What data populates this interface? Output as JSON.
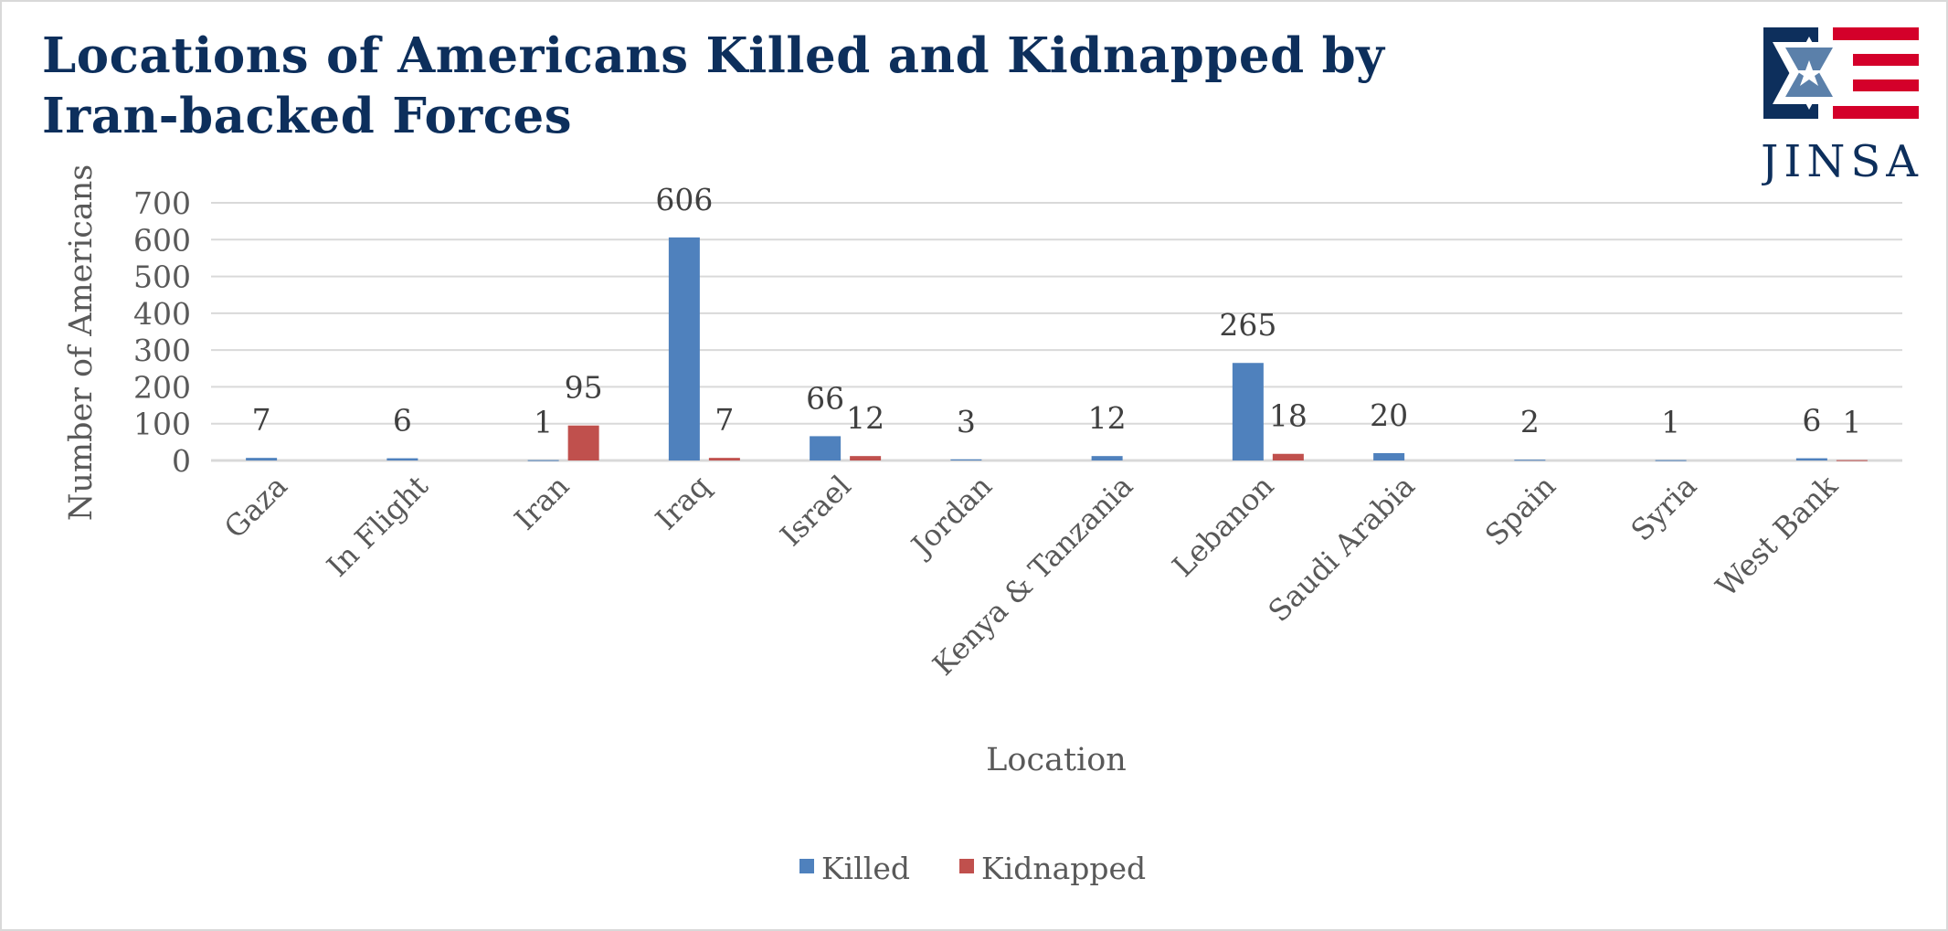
{
  "title": "Locations of Americans Killed and Kidnapped by Iran-backed Forces",
  "logo": {
    "text": "JINSA",
    "colors": {
      "navy": "#0d2f5c",
      "blue": "#5b80aa",
      "red": "#d4002a"
    }
  },
  "chart_data": {
    "type": "bar",
    "title": "Locations of Americans Killed and Kidnapped by Iran-backed Forces",
    "xlabel": "Location",
    "ylabel": "Number of Americans",
    "ylim": [
      0,
      700
    ],
    "yticks": [
      0,
      100,
      200,
      300,
      400,
      500,
      600,
      700
    ],
    "grid": true,
    "legend": "bottom",
    "categories": [
      "Gaza",
      "In Flight",
      "Iran",
      "Iraq",
      "Israel",
      "Jordan",
      "Kenya & Tanzania",
      "Lebanon",
      "Saudi Arabia",
      "Spain",
      "Syria",
      "West Bank"
    ],
    "series": [
      {
        "name": "Killed",
        "color": "#4f81bd",
        "values": [
          7,
          6,
          1,
          606,
          66,
          3,
          12,
          265,
          20,
          2,
          1,
          6
        ]
      },
      {
        "name": "Kidnapped",
        "color": "#c0504d",
        "values": [
          null,
          null,
          95,
          7,
          12,
          null,
          null,
          18,
          null,
          null,
          null,
          1
        ]
      }
    ]
  }
}
